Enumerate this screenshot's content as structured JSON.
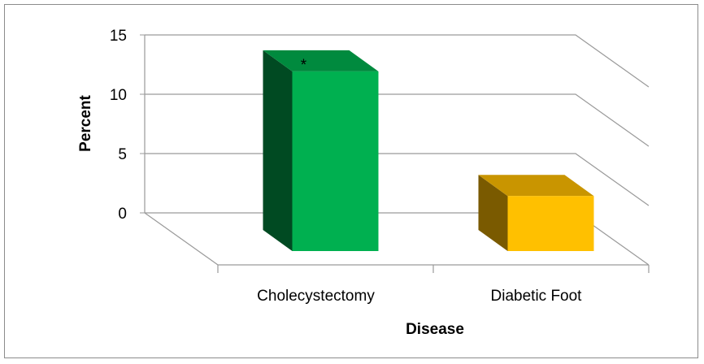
{
  "chart_data": {
    "type": "bar",
    "categories": [
      "Cholecystectomy",
      "Diabetic Foot"
    ],
    "values": [
      13.5,
      3.0
    ],
    "xlabel": "Disease",
    "ylabel": "Percent",
    "ylim": [
      0,
      15
    ],
    "yticks": [
      "0",
      "5",
      "10",
      "15"
    ],
    "grid": true,
    "annotations": [
      {
        "category": "Cholecystectomy",
        "text": "*"
      }
    ],
    "colors": {
      "Cholecystectomy": {
        "front": "#00b050",
        "side": "#004a22",
        "top": "#008a3e"
      },
      "Diabetic Foot": {
        "front": "#ffc000",
        "side": "#7a5a00",
        "top": "#c99500"
      }
    }
  }
}
